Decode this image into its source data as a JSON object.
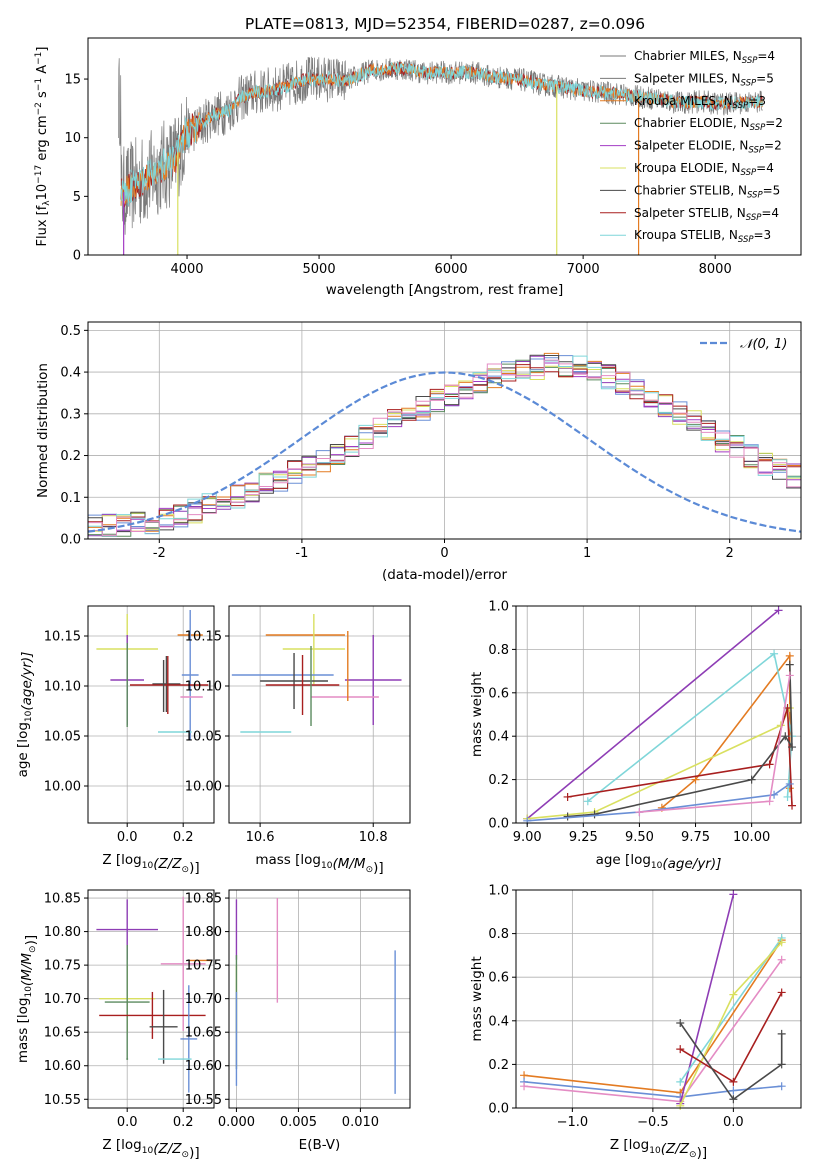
{
  "title": "PLATE=0813, MJD=52354, FIBERID=0287, z=0.096",
  "colors": {
    "Chabrier MILES": "#6a8fd6",
    "Salpeter MILES": "#8e3db5",
    "Kroupa MILES": "#e37b22",
    "Chabrier ELODIE": "#5b8a5f",
    "Salpeter ELODIE": "#a33bc4",
    "Kroupa ELODIE": "#d9e060",
    "Chabrier STELIB": "#4a4a4a",
    "Salpeter STELIB": "#a81f1f",
    "Kroupa STELIB": "#7fd6d9",
    "pink": "#e48cc4",
    "gauss": "#5b8ad6"
  },
  "chart_data": [
    {
      "id": "spectrum",
      "type": "line",
      "xlabel": "wavelength [Angstrom, rest frame]",
      "ylabel": "Flux [f",
      "ylabel_parts": [
        "Flux [f",
        "λ",
        "10",
        "−17",
        " erg cm",
        "−2",
        " s",
        "−1",
        " A",
        "−1",
        "]"
      ],
      "xlim": [
        3250,
        8650
      ],
      "ylim": [
        0,
        18.5
      ],
      "xticks": [
        4000,
        5000,
        6000,
        7000,
        8000
      ],
      "yticks": [
        0,
        5,
        10,
        15
      ],
      "grid": false,
      "legend_position": "right",
      "legend": [
        {
          "text": "Chabrier MILES, N",
          "sub": "SSP",
          "tail": "=4",
          "color": "#7a7a7a"
        },
        {
          "text": "Salpeter MILES, N",
          "sub": "SSP",
          "tail": "=5",
          "color": "#7a7a7a"
        },
        {
          "text": "Kroupa MILES, N",
          "sub": "SSP",
          "tail": "=3",
          "color": "#e37b22"
        },
        {
          "text": "Chabrier ELODIE, N",
          "sub": "SSP",
          "tail": "=2",
          "color": "#5b8a5f"
        },
        {
          "text": "Salpeter ELODIE, N",
          "sub": "SSP",
          "tail": "=2",
          "color": "#a33bc4"
        },
        {
          "text": "Kroupa ELODIE, N",
          "sub": "SSP",
          "tail": "=4",
          "color": "#d9e060"
        },
        {
          "text": "Chabrier STELIB, N",
          "sub": "SSP",
          "tail": "=5",
          "color": "#4a4a4a"
        },
        {
          "text": "Salpeter STELIB, N",
          "sub": "SSP",
          "tail": "=4",
          "color": "#a81f1f"
        },
        {
          "text": "Kroupa STELIB, N",
          "sub": "SSP",
          "tail": "=3",
          "color": "#7fd6d9"
        }
      ],
      "continuum": [
        [
          3500,
          5.2
        ],
        [
          3600,
          6.0
        ],
        [
          3700,
          6.5
        ],
        [
          3800,
          7.5
        ],
        [
          3900,
          8.0
        ],
        [
          4000,
          10.5
        ],
        [
          4100,
          11.0
        ],
        [
          4200,
          12.0
        ],
        [
          4300,
          12.2
        ],
        [
          4400,
          13.3
        ],
        [
          4500,
          13.8
        ],
        [
          4600,
          14.0
        ],
        [
          4700,
          14.2
        ],
        [
          4800,
          14.6
        ],
        [
          4900,
          15.0
        ],
        [
          5000,
          15.0
        ],
        [
          5100,
          15.0
        ],
        [
          5200,
          14.8
        ],
        [
          5300,
          15.3
        ],
        [
          5400,
          15.8
        ],
        [
          5500,
          15.8
        ],
        [
          5600,
          15.9
        ],
        [
          5700,
          15.8
        ],
        [
          5800,
          15.5
        ],
        [
          5900,
          15.6
        ],
        [
          6000,
          15.5
        ],
        [
          6100,
          15.6
        ],
        [
          6200,
          15.5
        ],
        [
          6300,
          15.2
        ],
        [
          6400,
          15.1
        ],
        [
          6500,
          15.0
        ],
        [
          6600,
          14.8
        ],
        [
          6700,
          14.5
        ],
        [
          6800,
          14.4
        ],
        [
          6900,
          14.2
        ],
        [
          7000,
          14.0
        ],
        [
          7100,
          13.9
        ],
        [
          7200,
          13.8
        ],
        [
          7300,
          13.7
        ],
        [
          7400,
          13.5
        ],
        [
          7500,
          13.4
        ],
        [
          7600,
          13.3
        ],
        [
          7700,
          13.0
        ],
        [
          7800,
          13.0
        ],
        [
          7900,
          13.1
        ],
        [
          8000,
          12.9
        ],
        [
          8100,
          12.9
        ],
        [
          8200,
          13.0
        ],
        [
          8300,
          13.0
        ],
        [
          8400,
          13.2
        ]
      ],
      "noise_amplitude": 1.5,
      "drops": [
        {
          "x": 3520,
          "series": "Salpeter ELODIE"
        },
        {
          "x": 3930,
          "series": "Kroupa ELODIE"
        },
        {
          "x": 6800,
          "series": "Kroupa ELODIE"
        },
        {
          "x": 7420,
          "series": "Kroupa MILES"
        }
      ]
    },
    {
      "id": "residuals",
      "type": "bar",
      "xlabel": "(data-model)/error",
      "ylabel": "Normed distribution",
      "xlim": [
        -2.5,
        2.5
      ],
      "ylim": [
        0,
        0.52
      ],
      "xticks": [
        -2,
        -1,
        0,
        1,
        2
      ],
      "yticks": [
        0.0,
        0.1,
        0.2,
        0.3,
        0.4,
        0.5
      ],
      "ytick_labels": [
        "0.0",
        "0.1",
        "0.2",
        "0.3",
        "0.4",
        "0.5"
      ],
      "grid": true,
      "legend": [
        {
          "text": "𝒩(0, 1)",
          "style": "dashed",
          "color": "#5b8ad6"
        }
      ],
      "legend_position": "top-right",
      "bin_width": 0.1,
      "bin_start": -2.5,
      "hist_total": [
        0.028,
        0.03,
        0.03,
        0.035,
        0.04,
        0.05,
        0.055,
        0.068,
        0.08,
        0.088,
        0.1,
        0.112,
        0.128,
        0.14,
        0.16,
        0.175,
        0.19,
        0.205,
        0.225,
        0.245,
        0.262,
        0.283,
        0.3,
        0.312,
        0.33,
        0.348,
        0.362,
        0.378,
        0.39,
        0.398,
        0.402,
        0.412,
        0.42,
        0.418,
        0.41,
        0.4,
        0.388,
        0.372,
        0.355,
        0.336,
        0.318,
        0.3,
        0.28,
        0.258,
        0.238,
        0.22,
        0.2,
        0.182,
        0.165,
        0.15
      ],
      "gauss": {
        "mu": 0,
        "sigma": 1
      }
    },
    {
      "id": "age-vs-Z",
      "type": "scatter",
      "xlabel": "Z [log10(Z/Z⊙)]",
      "ylabel": "age  [log10(age/yr)]",
      "xlim": [
        -0.14,
        0.31
      ],
      "ylim": [
        9.963,
        10.18
      ],
      "xticks": [
        0.0,
        0.2
      ],
      "xtick_labels": [
        "0.0",
        "0.2"
      ],
      "yticks": [
        10.0,
        10.05,
        10.1,
        10.15
      ],
      "ytick_labels": [
        "10.00",
        "10.05",
        "10.10",
        "10.15"
      ],
      "points": [
        {
          "series": "Kroupa MILES",
          "x": 0.225,
          "y": 10.151,
          "ex": 0.045,
          "ey": 0.0
        },
        {
          "series": "Kroupa ELODIE",
          "x": 0.0,
          "y": 10.137,
          "ex": 0.11,
          "ey": 0.035
        },
        {
          "series": "Salpeter MILES",
          "x": 0.0,
          "y": 10.106,
          "ex": 0.06,
          "ey": 0.045
        },
        {
          "series": "Chabrier MILES",
          "x": 0.225,
          "y": 10.111,
          "ex": 0.03,
          "ey": 0.065
        },
        {
          "series": "Chabrier STELIB",
          "x": 0.14,
          "y": 10.102,
          "ex": 0.05,
          "ey": 0.028
        },
        {
          "series": "Salpeter STELIB",
          "x": 0.15,
          "y": 10.101,
          "ex": 0.14,
          "ey": 0.0
        },
        {
          "series": "pink",
          "x": 0.23,
          "y": 10.089,
          "ex": 0.04,
          "ey": 0.0
        },
        {
          "series": "Kroupa STELIB",
          "x": 0.17,
          "y": 10.054,
          "ex": 0.06,
          "ey": 0.0
        },
        {
          "series": "Chabrier ELODIE",
          "x": 0.0,
          "y": 10.101,
          "ex": 0.0,
          "ey": 0.042
        },
        {
          "series": "Chabrier STELIB",
          "x": 0.13,
          "y": 10.1,
          "ex": 0.0,
          "ey": 0.026
        },
        {
          "series": "Salpeter STELIB",
          "x": 0.145,
          "y": 10.101,
          "ex": 0.0,
          "ey": 0.029
        }
      ]
    },
    {
      "id": "age-vs-mass",
      "type": "scatter",
      "xlabel": "mass [log10(M/M⊙)]",
      "xlim": [
        10.545,
        10.865
      ],
      "ylim": [
        9.963,
        10.18
      ],
      "xticks": [
        10.6,
        10.8
      ],
      "xtick_labels": [
        "10.6",
        "10.8"
      ],
      "yticks": [
        10.0,
        10.05,
        10.1,
        10.15
      ],
      "ytick_labels": [
        "10.00",
        "10.05",
        "10.10",
        "10.15"
      ],
      "points": [
        {
          "series": "Kroupa MILES",
          "x": 10.68,
          "y": 10.151,
          "ex": 0.07,
          "ey": 0.0
        },
        {
          "series": "Kroupa ELODIE",
          "x": 10.695,
          "y": 10.137,
          "ex": 0.055,
          "ey": 0.035
        },
        {
          "series": "Salpeter MILES",
          "x": 10.8,
          "y": 10.106,
          "ex": 0.05,
          "ey": 0.045
        },
        {
          "series": "Chabrier MILES",
          "x": 10.64,
          "y": 10.111,
          "ex": 0.09,
          "ey": 0.0
        },
        {
          "series": "Chabrier STELIB",
          "x": 10.66,
          "y": 10.105,
          "ex": 0.06,
          "ey": 0.028
        },
        {
          "series": "Salpeter STELIB",
          "x": 10.675,
          "y": 10.101,
          "ex": 0.065,
          "ey": 0.03
        },
        {
          "series": "pink",
          "x": 10.75,
          "y": 10.089,
          "ex": 0.06,
          "ey": 0.0
        },
        {
          "series": "Kroupa STELIB",
          "x": 10.61,
          "y": 10.054,
          "ex": 0.045,
          "ey": 0.0
        },
        {
          "series": "Kroupa MILES",
          "x": 10.755,
          "y": 10.12,
          "ex": 0.0,
          "ey": 0.035
        },
        {
          "series": "Chabrier ELODIE",
          "x": 10.69,
          "y": 10.1,
          "ex": 0.0,
          "ey": 0.04
        }
      ]
    },
    {
      "id": "mass-weight-vs-age",
      "type": "line",
      "xlabel": "age  [log10(age/yr)]",
      "ylabel": "mass weight",
      "xlim": [
        8.95,
        10.22
      ],
      "ylim": [
        0,
        1
      ],
      "xticks": [
        9.0,
        9.25,
        9.5,
        9.75,
        10.0
      ],
      "xtick_labels": [
        "9.00",
        "9.25",
        "9.50",
        "9.75",
        "10.00"
      ],
      "yticks": [
        0,
        0.2,
        0.4,
        0.6,
        0.8,
        1.0
      ],
      "ytick_labels": [
        "0.0",
        "0.2",
        "0.4",
        "0.6",
        "0.8",
        "1.0"
      ],
      "series": [
        {
          "name": "Salpeter MILES",
          "x": [
            9.0,
            10.12
          ],
          "y": [
            0.02,
            0.98
          ]
        },
        {
          "name": "Kroupa MILES",
          "x": [
            9.6,
            9.75,
            10.17,
            10.17
          ],
          "y": [
            0.07,
            0.2,
            0.77,
            0.16
          ]
        },
        {
          "name": "Kroupa STELIB",
          "x": [
            9.27,
            10.1,
            10.18,
            10.16
          ],
          "y": [
            0.1,
            0.78,
            0.4,
            0.12
          ]
        },
        {
          "name": "Kroupa ELODIE",
          "x": [
            9.0,
            9.3,
            10.13,
            10.17
          ],
          "y": [
            0.02,
            0.05,
            0.45,
            0.53
          ]
        },
        {
          "name": "Salpeter STELIB",
          "x": [
            9.18,
            10.08,
            10.16,
            10.18
          ],
          "y": [
            0.12,
            0.27,
            0.53,
            0.08
          ]
        },
        {
          "name": "Chabrier STELIB",
          "x": [
            9.18,
            9.3,
            10.0,
            10.15,
            10.18,
            10.17
          ],
          "y": [
            0.03,
            0.04,
            0.2,
            0.4,
            0.35,
            0.73
          ]
        },
        {
          "name": "Chabrier MILES",
          "x": [
            9.0,
            9.5,
            10.1,
            10.17
          ],
          "y": [
            0.01,
            0.05,
            0.13,
            0.18
          ]
        },
        {
          "name": "pink",
          "x": [
            9.5,
            10.08,
            10.17
          ],
          "y": [
            0.05,
            0.1,
            0.68
          ]
        }
      ]
    },
    {
      "id": "mass-vs-Z",
      "type": "scatter",
      "xlabel": "Z [log10(Z/Z⊙)]",
      "ylabel": "mass [log10(M/M⊙)]",
      "xlim": [
        -0.14,
        0.31
      ],
      "ylim": [
        10.537,
        10.862
      ],
      "xticks": [
        0.0,
        0.2
      ],
      "xtick_labels": [
        "0.0",
        "0.2"
      ],
      "yticks": [
        10.55,
        10.6,
        10.65,
        10.7,
        10.75,
        10.8,
        10.85
      ],
      "ytick_labels": [
        "10.55",
        "10.60",
        "10.65",
        "10.70",
        "10.75",
        "10.80",
        "10.85"
      ],
      "points": [
        {
          "series": "Salpeter MILES",
          "x": 0.0,
          "y": 10.803,
          "ex": 0.11,
          "ey": 0.045
        },
        {
          "series": "Kroupa MILES",
          "x": 0.26,
          "y": 10.757,
          "ex": 0.04,
          "ey": 0.0
        },
        {
          "series": "pink",
          "x": 0.2,
          "y": 10.752,
          "ex": 0.08,
          "ey": 0.1
        },
        {
          "series": "Kroupa ELODIE",
          "x": 0.0,
          "y": 10.7,
          "ex": 0.1,
          "ey": 0.05
        },
        {
          "series": "Chabrier ELODIE",
          "x": 0.0,
          "y": 10.695,
          "ex": 0.08,
          "ey": 0.085
        },
        {
          "series": "Salpeter STELIB",
          "x": 0.09,
          "y": 10.675,
          "ex": 0.19,
          "ey": 0.035
        },
        {
          "series": "Chabrier STELIB",
          "x": 0.13,
          "y": 10.658,
          "ex": 0.05,
          "ey": 0.055
        },
        {
          "series": "Chabrier MILES",
          "x": 0.22,
          "y": 10.64,
          "ex": 0.03,
          "ey": 0.08
        },
        {
          "series": "Kroupa STELIB",
          "x": 0.17,
          "y": 10.61,
          "ex": 0.06,
          "ey": 0.0
        },
        {
          "series": "Chabrier ELODIE",
          "x": 0.0,
          "y": 10.61,
          "ex": 0.0,
          "ey": 0.0
        }
      ]
    },
    {
      "id": "mass-vs-EBV",
      "type": "scatter",
      "xlabel": "E(B-V)",
      "xlim": [
        -0.0006,
        0.014
      ],
      "ylim": [
        10.537,
        10.862
      ],
      "xticks": [
        0.0,
        0.005,
        0.01
      ],
      "xtick_labels": [
        "0.000",
        "0.005",
        "0.010"
      ],
      "yticks": [
        10.55,
        10.6,
        10.65,
        10.7,
        10.75,
        10.8,
        10.85
      ],
      "ytick_labels": [
        "10.55",
        "10.60",
        "10.65",
        "10.70",
        "10.75",
        "10.80",
        "10.85"
      ],
      "points": [
        {
          "series": "Salpeter MILES",
          "x": 0.0,
          "y": 10.803,
          "ex": 0.0,
          "ey": 0.045
        },
        {
          "series": "Kroupa ELODIE",
          "x": 0.0,
          "y": 10.7,
          "ex": 0.0,
          "ey": 0.05
        },
        {
          "series": "Chabrier ELODIE",
          "x": 0.0,
          "y": 10.68,
          "ex": 0.0,
          "ey": 0.085
        },
        {
          "series": "Chabrier MILES",
          "x": 0.0,
          "y": 10.64,
          "ex": 0.0,
          "ey": 0.07
        },
        {
          "series": "pink",
          "x": 0.0033,
          "y": 10.772,
          "ex": 0.0,
          "ey": 0.078
        },
        {
          "series": "Chabrier MILES",
          "x": 0.0128,
          "y": 10.665,
          "ex": 0.0,
          "ey": 0.107
        }
      ]
    },
    {
      "id": "mass-weight-vs-Z",
      "type": "line",
      "xlabel": "Z [log10(Z/Z⊙)]",
      "ylabel": "mass weight",
      "xlim": [
        -1.35,
        0.42
      ],
      "ylim": [
        0,
        1
      ],
      "xticks": [
        -1.0,
        -0.5,
        0.0
      ],
      "xtick_labels": [
        "−1.0",
        "−0.5",
        "0.0"
      ],
      "yticks": [
        0,
        0.2,
        0.4,
        0.6,
        0.8,
        1.0
      ],
      "ytick_labels": [
        "0.0",
        "0.2",
        "0.4",
        "0.6",
        "0.8",
        "1.0"
      ],
      "series": [
        {
          "name": "Kroupa MILES",
          "x": [
            -1.3,
            -0.33,
            0.3
          ],
          "y": [
            0.15,
            0.07,
            0.77
          ]
        },
        {
          "name": "Chabrier MILES",
          "x": [
            -1.3,
            -0.33,
            0.0,
            0.3
          ],
          "y": [
            0.12,
            0.05,
            0.08,
            0.1
          ]
        },
        {
          "name": "pink",
          "x": [
            -1.3,
            -0.33,
            0.3
          ],
          "y": [
            0.1,
            0.03,
            0.68
          ]
        },
        {
          "name": "Salpeter MILES",
          "x": [
            -0.33,
            0.0
          ],
          "y": [
            0.02,
            0.98
          ]
        },
        {
          "name": "Kroupa STELIB",
          "x": [
            -0.33,
            0.3
          ],
          "y": [
            0.12,
            0.78
          ]
        },
        {
          "name": "Kroupa ELODIE",
          "x": [
            -0.33,
            0.0,
            0.3
          ],
          "y": [
            0.01,
            0.52,
            0.76
          ]
        },
        {
          "name": "Salpeter STELIB",
          "x": [
            -0.33,
            0.0,
            0.3
          ],
          "y": [
            0.27,
            0.12,
            0.53
          ]
        },
        {
          "name": "Chabrier STELIB",
          "x": [
            -0.33,
            0.0,
            0.3,
            0.3
          ],
          "y": [
            0.39,
            0.04,
            0.2,
            0.34
          ]
        }
      ]
    }
  ]
}
